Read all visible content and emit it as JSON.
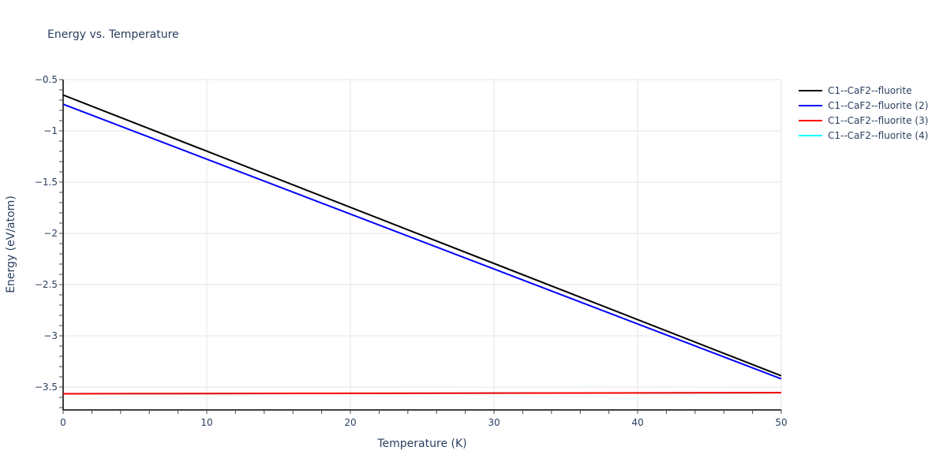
{
  "chart_data": {
    "type": "line",
    "title": "Energy vs. Temperature",
    "xlabel": "Temperature (K)",
    "ylabel": "Energy (eV/atom)",
    "xlim": [
      0,
      50
    ],
    "ylim": [
      -3.73,
      -0.5
    ],
    "x_ticks": [
      0,
      10,
      20,
      30,
      40,
      50
    ],
    "y_ticks": [
      -0.5,
      -1,
      -1.5,
      -2,
      -2.5,
      -3,
      -3.5
    ],
    "y_tick_labels": [
      "−0.5",
      "−1",
      "−1.5",
      "−2",
      "−2.5",
      "−3",
      "−3.5"
    ],
    "grid": true,
    "legend_position": "right",
    "series": [
      {
        "name": "C1--CaF2--fluorite",
        "color": "#000000",
        "x": [
          0,
          50
        ],
        "y": [
          -0.65,
          -3.39
        ]
      },
      {
        "name": "C1--CaF2--fluorite (2)",
        "color": "#0000ff",
        "x": [
          0,
          50
        ],
        "y": [
          -0.74,
          -3.42
        ]
      },
      {
        "name": "C1--CaF2--fluorite (3)",
        "color": "#ff0000",
        "x": [
          0,
          50
        ],
        "y": [
          -3.565,
          -3.555
        ]
      },
      {
        "name": "C1--CaF2--fluorite (4)",
        "color": "#00ffff",
        "x": [
          0,
          50
        ],
        "y": [
          -3.565,
          -3.555
        ]
      }
    ]
  }
}
